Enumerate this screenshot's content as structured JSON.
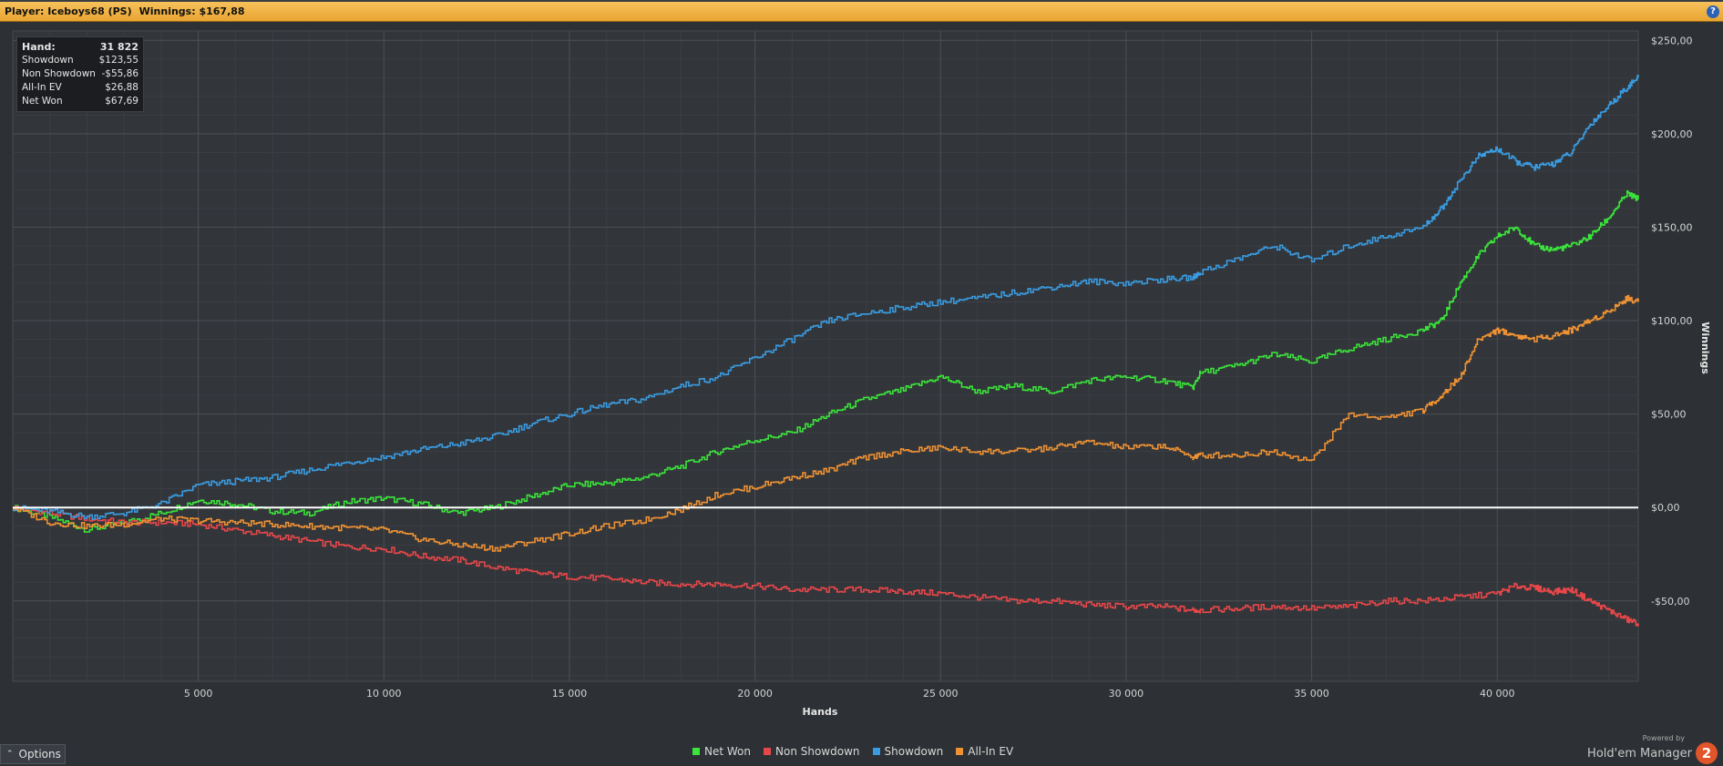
{
  "header": {
    "player_label": "Player:",
    "player_name": "Iceboys68 (PS)",
    "winnings_label": "Winnings:",
    "winnings_value": "$167,88",
    "help_label": "?"
  },
  "info_box": {
    "rows": [
      {
        "label": "Hand:",
        "value": "31 822"
      },
      {
        "label": "Showdown",
        "value": "$123,55"
      },
      {
        "label": "Non Showdown",
        "value": "-$55,86"
      },
      {
        "label": "All-In EV",
        "value": "$26,88"
      },
      {
        "label": "Net Won",
        "value": "$67,69"
      }
    ]
  },
  "options": {
    "label": "Options"
  },
  "brand": {
    "powered_by": "Powered by",
    "name": "Hold'em Manager",
    "logo_text": "2"
  },
  "colors": {
    "net_won": "#3be43b",
    "non_showdown": "#e8474a",
    "showdown": "#3a9be0",
    "all_in_ev": "#ef9233",
    "zero_line": "#ffffff"
  },
  "chart_data": {
    "type": "line",
    "xlabel": "Hands",
    "ylabel": "Winnings",
    "xlim": [
      0,
      43800
    ],
    "ylim": [
      -93,
      255
    ],
    "x_ticks": [
      {
        "value": 5000,
        "label": "5 000"
      },
      {
        "value": 10000,
        "label": "10 000"
      },
      {
        "value": 15000,
        "label": "15 000"
      },
      {
        "value": 20000,
        "label": "20 000"
      },
      {
        "value": 25000,
        "label": "25 000"
      },
      {
        "value": 30000,
        "label": "30 000"
      },
      {
        "value": 35000,
        "label": "35 000"
      },
      {
        "value": 40000,
        "label": "40 000"
      }
    ],
    "y_ticks": [
      {
        "value": 250,
        "label": "$250,00"
      },
      {
        "value": 200,
        "label": "$200,00"
      },
      {
        "value": 150,
        "label": "$150,00"
      },
      {
        "value": 100,
        "label": "$100,00"
      },
      {
        "value": 50,
        "label": "$50,00"
      },
      {
        "value": 0,
        "label": "$0,00"
      },
      {
        "value": -50,
        "label": "-$50,00"
      }
    ],
    "grid": true,
    "legend_position": "bottom",
    "series": [
      {
        "name": "Net Won",
        "color_key": "net_won",
        "x": [
          0,
          1000,
          2000,
          3000,
          4000,
          5000,
          6000,
          7000,
          8000,
          9000,
          10000,
          11000,
          12000,
          13000,
          14000,
          15000,
          16000,
          17000,
          18000,
          19000,
          20000,
          21000,
          22000,
          23000,
          24000,
          25000,
          26000,
          27000,
          28000,
          29000,
          30000,
          31000,
          31800,
          32000,
          33000,
          34000,
          35000,
          36000,
          37000,
          38000,
          38500,
          39000,
          39500,
          40000,
          40500,
          41000,
          41500,
          42000,
          42500,
          43000,
          43500,
          43800
        ],
        "y": [
          0,
          -5,
          -12,
          -8,
          -3,
          4,
          2,
          -2,
          -3,
          3,
          5,
          2,
          -3,
          0,
          6,
          12,
          13,
          16,
          22,
          30,
          36,
          40,
          50,
          58,
          63,
          70,
          62,
          65,
          62,
          68,
          70,
          68,
          64,
          72,
          76,
          82,
          78,
          85,
          90,
          95,
          100,
          120,
          135,
          145,
          150,
          140,
          138,
          140,
          145,
          155,
          168,
          165
        ]
      },
      {
        "name": "Non Showdown",
        "color_key": "non_showdown",
        "x": [
          0,
          1000,
          2000,
          3000,
          4000,
          5000,
          6000,
          7000,
          8000,
          9000,
          10000,
          11000,
          12000,
          13000,
          14000,
          15000,
          16000,
          17000,
          18000,
          19000,
          20000,
          21000,
          22000,
          23000,
          24000,
          25000,
          26000,
          27000,
          28000,
          29000,
          30000,
          31000,
          31800,
          32000,
          33000,
          34000,
          35000,
          36000,
          37000,
          38000,
          39000,
          40000,
          40500,
          41000,
          41500,
          42000,
          42500,
          43000,
          43500,
          43800
        ],
        "y": [
          0,
          -3,
          -6,
          -8,
          -8,
          -9,
          -12,
          -15,
          -18,
          -21,
          -22,
          -26,
          -28,
          -32,
          -35,
          -37,
          -38,
          -40,
          -41,
          -41,
          -42,
          -44,
          -44,
          -44,
          -45,
          -46,
          -48,
          -50,
          -50,
          -52,
          -53,
          -53,
          -55,
          -55,
          -54,
          -53,
          -54,
          -53,
          -50,
          -50,
          -48,
          -46,
          -42,
          -43,
          -45,
          -44,
          -50,
          -55,
          -60,
          -62
        ]
      },
      {
        "name": "Showdown",
        "color_key": "showdown",
        "x": [
          0,
          1000,
          2000,
          3000,
          4000,
          5000,
          6000,
          7000,
          8000,
          9000,
          10000,
          11000,
          12000,
          13000,
          14000,
          15000,
          16000,
          17000,
          18000,
          19000,
          20000,
          21000,
          22000,
          23000,
          24000,
          25000,
          26000,
          27000,
          28000,
          29000,
          30000,
          31000,
          31800,
          32000,
          33000,
          34000,
          35000,
          36000,
          37000,
          38000,
          38500,
          39000,
          39500,
          40000,
          40500,
          41000,
          41500,
          42000,
          42500,
          43000,
          43500,
          43800
        ],
        "y": [
          0,
          -2,
          -5,
          -3,
          2,
          12,
          14,
          16,
          20,
          24,
          27,
          31,
          34,
          38,
          45,
          50,
          55,
          58,
          65,
          70,
          80,
          90,
          100,
          104,
          107,
          110,
          112,
          115,
          118,
          121,
          120,
          122,
          123,
          126,
          133,
          140,
          132,
          140,
          145,
          150,
          160,
          175,
          188,
          192,
          185,
          182,
          184,
          190,
          205,
          215,
          225,
          230
        ]
      },
      {
        "name": "All-In EV",
        "color_key": "all_in_ev",
        "x": [
          0,
          1000,
          2000,
          3000,
          4000,
          5000,
          6000,
          7000,
          8000,
          9000,
          10000,
          11000,
          12000,
          13000,
          14000,
          15000,
          16000,
          17000,
          18000,
          19000,
          20000,
          21000,
          22000,
          23000,
          24000,
          25000,
          26000,
          27000,
          28000,
          29000,
          30000,
          31000,
          31800,
          32000,
          33000,
          34000,
          35000,
          36000,
          37000,
          38000,
          38500,
          39000,
          39500,
          40000,
          40500,
          41000,
          41500,
          42000,
          42500,
          43000,
          43500,
          43800
        ],
        "y": [
          0,
          -8,
          -10,
          -9,
          -6,
          -7,
          -8,
          -9,
          -10,
          -11,
          -12,
          -17,
          -20,
          -22,
          -18,
          -14,
          -10,
          -7,
          -1,
          7,
          11,
          16,
          20,
          27,
          30,
          32,
          30,
          30,
          32,
          35,
          32,
          33,
          27,
          28,
          28,
          30,
          25,
          50,
          48,
          52,
          60,
          70,
          90,
          95,
          92,
          90,
          92,
          95,
          100,
          105,
          112,
          110
        ]
      }
    ]
  }
}
